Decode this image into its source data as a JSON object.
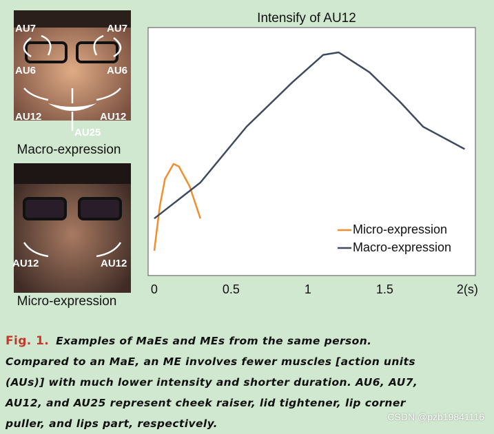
{
  "figure": {
    "faces": [
      {
        "label": "Macro-expression",
        "annotations": [
          "AU7",
          "AU7",
          "AU6",
          "AU6",
          "AU12",
          "AU12",
          "AU25"
        ]
      },
      {
        "label": "Micro-expression",
        "annotations": [
          "AU12",
          "AU12"
        ]
      }
    ],
    "caption": {
      "number": "Fig. 1.",
      "lines": [
        "Examples of MaEs and MEs from the same person.",
        "Compared to an MaE, an ME involves fewer muscles [action units",
        "(AUs)] with much lower intensity and shorter duration. AU6, AU7,",
        "AU12, and AU25 represent cheek raiser, lid tightener, lip corner",
        "puller, and lips part, respectively."
      ]
    },
    "watermark": "CSDN @pzb19841116"
  },
  "chart_data": {
    "type": "line",
    "title": "Intensify of AU12",
    "xlim": [
      -0.04,
      2.09
    ],
    "ylim": [
      0,
      1
    ],
    "xticks": [
      0,
      0.5,
      1,
      1.5,
      {
        "value": 2,
        "label": "2(s)"
      }
    ],
    "legend": "lower right",
    "series": [
      {
        "name": "Micro-expression",
        "color": "#f28e2b",
        "x": [
          0,
          0.036,
          0.07,
          0.125,
          0.16,
          0.23,
          0.3
        ],
        "values": [
          0.1,
          0.28,
          0.39,
          0.45,
          0.44,
          0.36,
          0.23
        ]
      },
      {
        "name": "Macro-expression",
        "color": "#3e4a5e",
        "x": [
          0,
          0.3,
          0.6,
          0.9,
          1.1,
          1.2,
          1.4,
          1.6,
          1.75,
          2.02
        ],
        "values": [
          0.23,
          0.375,
          0.6,
          0.78,
          0.89,
          0.9,
          0.82,
          0.7,
          0.6,
          0.51
        ]
      }
    ]
  }
}
